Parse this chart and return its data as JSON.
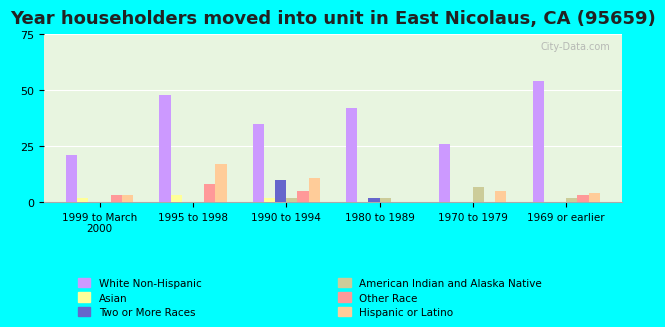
{
  "title": "Year householders moved into unit in East Nicolaus, CA (95659)",
  "categories": [
    "1999 to March\n2000",
    "1995 to 1998",
    "1990 to 1994",
    "1980 to 1989",
    "1970 to 1979",
    "1969 or earlier"
  ],
  "series": {
    "White Non-Hispanic": [
      21,
      48,
      35,
      42,
      26,
      54
    ],
    "Asian": [
      2,
      3,
      2,
      0,
      0,
      0
    ],
    "Two or More Races": [
      0,
      0,
      10,
      2,
      0,
      0
    ],
    "American Indian and Alaska Native": [
      0,
      0,
      2,
      2,
      7,
      2
    ],
    "Other Race": [
      3,
      8,
      5,
      0,
      0,
      3
    ],
    "Hispanic or Latino": [
      3,
      17,
      11,
      0,
      5,
      4
    ]
  },
  "colors": {
    "White Non-Hispanic": "#cc99ff",
    "Asian": "#ffff99",
    "Two or More Races": "#6666cc",
    "American Indian and Alaska Native": "#cccc99",
    "Other Race": "#ff9999",
    "Hispanic or Latino": "#ffcc99"
  },
  "ylim": [
    0,
    75
  ],
  "yticks": [
    0,
    25,
    50,
    75
  ],
  "background_color": "#00ffff",
  "plot_bg_top": "#e8f5e0",
  "plot_bg_bottom": "#f5fff5",
  "title_fontsize": 13,
  "legend_fontsize": 7.5,
  "bar_width": 0.12
}
